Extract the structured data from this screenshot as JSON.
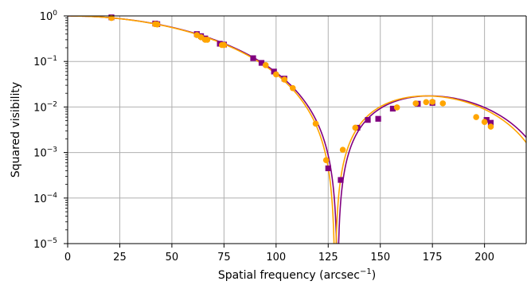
{
  "chart_data": {
    "type": "scatter",
    "xlabel": "Spatial frequency (arcsec",
    "xlabel_sup": "−1",
    "xlabel_close": ")",
    "ylabel": "Squared visibility",
    "y_scale": "log",
    "xlim": [
      0,
      220
    ],
    "ylim": [
      1e-05,
      1
    ],
    "grid": true,
    "x_ticks": [
      0,
      25,
      50,
      75,
      100,
      125,
      150,
      175,
      200
    ],
    "x_tick_labels": [
      "0",
      "25",
      "50",
      "75",
      "100",
      "125",
      "150",
      "175",
      "200"
    ],
    "y_ticks": [
      {
        "value": 1,
        "base": "10",
        "exp": "0"
      },
      {
        "value": 0.1,
        "base": "10",
        "exp": "−1"
      },
      {
        "value": 0.01,
        "base": "10",
        "exp": "−2"
      },
      {
        "value": 0.001,
        "base": "10",
        "exp": "−3"
      },
      {
        "value": 0.0001,
        "base": "10",
        "exp": "−4"
      },
      {
        "value": 1e-05,
        "base": "10",
        "exp": "−5"
      }
    ],
    "colors": {
      "purple": "#800080",
      "orange": "#FFA500",
      "grid": "#b0b0b0"
    },
    "series": [
      {
        "marker": "square",
        "color": "#800080",
        "points": [
          [
            21,
            0.93
          ],
          [
            42,
            0.68
          ],
          [
            43,
            0.66
          ],
          [
            62,
            0.4
          ],
          [
            64,
            0.36
          ],
          [
            66,
            0.32
          ],
          [
            73,
            0.245
          ],
          [
            75,
            0.235
          ],
          [
            89,
            0.118
          ],
          [
            93,
            0.093
          ],
          [
            99,
            0.06
          ],
          [
            104,
            0.042
          ],
          [
            125,
            0.00045
          ],
          [
            131,
            0.00025
          ],
          [
            139,
            0.0035
          ],
          [
            144,
            0.0052
          ],
          [
            149,
            0.0055
          ],
          [
            156,
            0.0092
          ],
          [
            168,
            0.0118
          ],
          [
            175,
            0.0123
          ],
          [
            201,
            0.0052
          ],
          [
            203,
            0.0045
          ]
        ]
      },
      {
        "marker": "circle",
        "color": "#FFA500",
        "points": [
          [
            21,
            0.9
          ],
          [
            42,
            0.66
          ],
          [
            43,
            0.65
          ],
          [
            62,
            0.38
          ],
          [
            64,
            0.34
          ],
          [
            66,
            0.3
          ],
          [
            67,
            0.3
          ],
          [
            74,
            0.23
          ],
          [
            75,
            0.23
          ],
          [
            95,
            0.083
          ],
          [
            100,
            0.052
          ],
          [
            104,
            0.04
          ],
          [
            108,
            0.026
          ],
          [
            119,
            0.0043
          ],
          [
            124,
            0.00068
          ],
          [
            132,
            0.00115
          ],
          [
            138,
            0.0035
          ],
          [
            158,
            0.0098
          ],
          [
            167,
            0.012
          ],
          [
            172,
            0.0128
          ],
          [
            175,
            0.013
          ],
          [
            180,
            0.012
          ],
          [
            196,
            0.006
          ],
          [
            200,
            0.0047
          ],
          [
            203,
            0.0037
          ]
        ]
      }
    ]
  }
}
